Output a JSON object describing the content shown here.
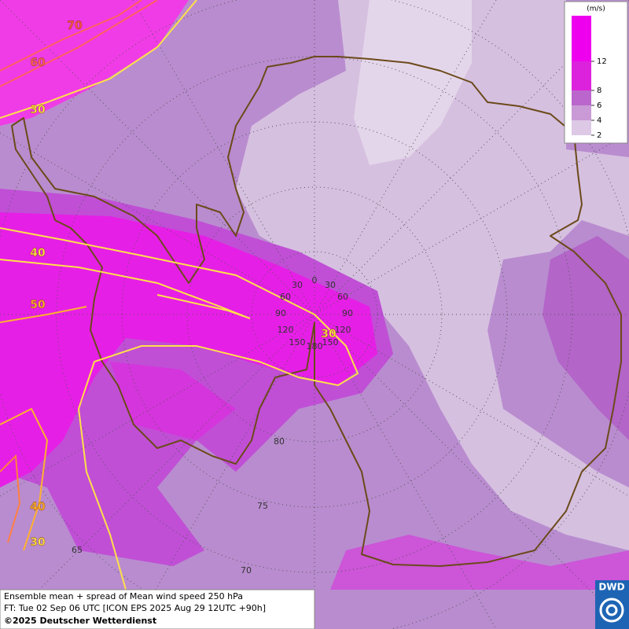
{
  "legend": {
    "unit": "(m/s)",
    "levels": [
      12,
      8,
      6,
      4,
      2
    ]
  },
  "contour_labels": [
    70,
    60,
    30,
    40,
    50,
    30,
    40,
    30
  ],
  "grid_labels": [
    "0",
    "30",
    "30",
    "60",
    "60",
    "90",
    "90",
    "120",
    "120",
    "150",
    "150",
    "180",
    "80",
    "75",
    "70",
    "65"
  ],
  "caption": {
    "line1": "Ensemble mean + spread of Mean wind speed 250 hPa",
    "line2": "FT: Tue 02 Sep 06 UTC [ICON EPS 2025 Aug 29 12UTC +90h]",
    "line3": "©2025 Deutscher Wetterdienst"
  },
  "logo": "DWD"
}
